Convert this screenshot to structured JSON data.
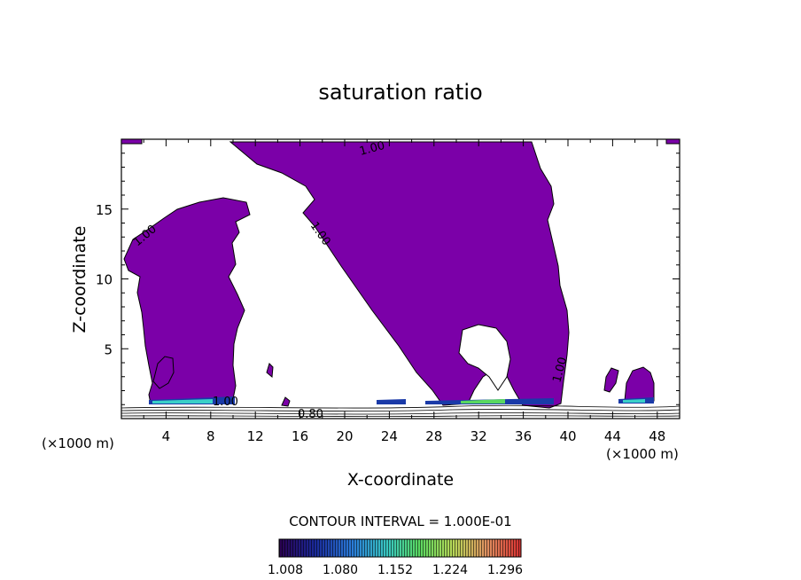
{
  "chart_data": {
    "type": "contour",
    "title": "saturation ratio",
    "xlabel": "X-coordinate",
    "ylabel": "Z-coordinate",
    "x_unit": "(×1000 m)",
    "z_unit": "(×1000 m)",
    "xlim": [
      0,
      50
    ],
    "ylim": [
      0,
      20
    ],
    "x_ticks": [
      4,
      8,
      12,
      16,
      20,
      24,
      28,
      32,
      36,
      40,
      44,
      48
    ],
    "y_ticks": [
      5,
      10,
      15
    ],
    "fill_color": "#7b00a8",
    "contour_labels": [
      {
        "text": "1.00",
        "x": 22.5,
        "z": 19.0
      },
      {
        "text": "1.00",
        "x": 17.0,
        "z": 13.5
      },
      {
        "text": "1.00",
        "x": 2.5,
        "z": 13.0
      },
      {
        "text": "1.00",
        "x": 39.5,
        "z": 3.5
      },
      {
        "text": "1.00",
        "x": 9.0,
        "z": 1.3
      },
      {
        "text": "0.80",
        "x": 17.0,
        "z": 0.4
      }
    ],
    "contour_interval_text": "CONTOUR INTERVAL = 1.000E-01",
    "colorbar": {
      "tick_labels": [
        "1.008",
        "1.080",
        "1.152",
        "1.224",
        "1.296"
      ],
      "colors": [
        "#2a0050",
        "#1a2a9a",
        "#2a7ad8",
        "#39c8c0",
        "#5ad860",
        "#b8d858",
        "#e09060",
        "#d83030"
      ]
    }
  }
}
